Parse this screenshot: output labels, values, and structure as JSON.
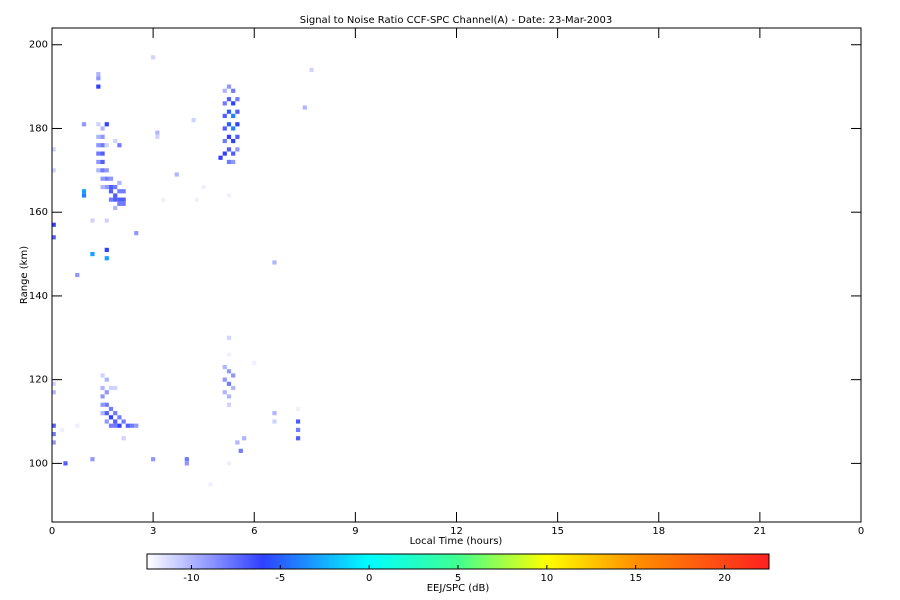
{
  "chart_data": {
    "type": "heatmap",
    "title": "Signal to Noise Ratio CCF-SPC Channel(A) - Date: 23-Mar-2003",
    "x_label": "Local Time (hours)",
    "y_label": "Range (km)",
    "colorbar_label": "EEJ/SPC (dB)",
    "xlim": [
      0,
      24
    ],
    "xticks": [
      0,
      3,
      6,
      9,
      12,
      15,
      18,
      21,
      {
        "value": 24,
        "label": "0"
      }
    ],
    "ylim": [
      86,
      204
    ],
    "yticks": [
      100,
      120,
      140,
      160,
      180,
      200
    ],
    "clim": [
      -12.5,
      22.5
    ],
    "cticks": [
      -10,
      -5,
      0,
      5,
      10,
      15,
      20
    ],
    "colorscale": [
      [
        -12.5,
        "#ffffff"
      ],
      [
        -6,
        "#3040ff"
      ],
      [
        0,
        "#00ffff"
      ],
      [
        5,
        "#40ff90"
      ],
      [
        10,
        "#ffff00"
      ],
      [
        15,
        "#ff9000"
      ],
      [
        22.5,
        "#ff2020"
      ]
    ],
    "x_step": 0.125,
    "y_step": 1,
    "cells": [
      [
        0.05,
        157,
        -6
      ],
      [
        0.05,
        154,
        -7
      ],
      [
        0.05,
        170,
        -11
      ],
      [
        0.05,
        175,
        -11
      ],
      [
        0.05,
        117,
        -10
      ],
      [
        0.05,
        119,
        -11
      ],
      [
        0.05,
        109,
        -7
      ],
      [
        0.05,
        107,
        -8
      ],
      [
        0.05,
        105,
        -9
      ],
      [
        0.4,
        100,
        -7
      ],
      [
        0.3,
        108,
        -12
      ],
      [
        0.75,
        145,
        -9
      ],
      [
        0.75,
        109,
        -12
      ],
      [
        0.95,
        181,
        -9
      ],
      [
        0.95,
        165,
        -3
      ],
      [
        0.95,
        164,
        -4
      ],
      [
        1.2,
        150,
        -3
      ],
      [
        1.2,
        158,
        -11
      ],
      [
        1.2,
        101,
        -9
      ],
      [
        1.375,
        193,
        -10
      ],
      [
        1.375,
        192,
        -9
      ],
      [
        1.375,
        190,
        -6
      ],
      [
        1.375,
        181,
        -11
      ],
      [
        1.375,
        178,
        -10
      ],
      [
        1.375,
        176,
        -9
      ],
      [
        1.375,
        174,
        -8
      ],
      [
        1.375,
        172,
        -9
      ],
      [
        1.375,
        170,
        -10
      ],
      [
        1.5,
        180,
        -10
      ],
      [
        1.5,
        178,
        -9
      ],
      [
        1.5,
        176,
        -8
      ],
      [
        1.5,
        174,
        -7
      ],
      [
        1.5,
        172,
        -7
      ],
      [
        1.5,
        170,
        -8
      ],
      [
        1.5,
        168,
        -9
      ],
      [
        1.5,
        166,
        -10
      ],
      [
        1.625,
        181,
        -6
      ],
      [
        1.625,
        176,
        -11
      ],
      [
        1.625,
        170,
        -9
      ],
      [
        1.625,
        168,
        -8
      ],
      [
        1.625,
        166,
        -9
      ],
      [
        1.625,
        158,
        -11
      ],
      [
        1.625,
        151,
        -6
      ],
      [
        1.625,
        149,
        -3
      ],
      [
        1.75,
        168,
        -9
      ],
      [
        1.75,
        166,
        -7
      ],
      [
        1.75,
        165,
        -7
      ],
      [
        1.75,
        163,
        -8
      ],
      [
        1.875,
        177,
        -11
      ],
      [
        1.875,
        166,
        -8
      ],
      [
        1.875,
        164,
        -7
      ],
      [
        1.875,
        163,
        -7
      ],
      [
        1.875,
        161,
        -10
      ],
      [
        2.0,
        176,
        -8
      ],
      [
        2.0,
        167,
        -10
      ],
      [
        2.0,
        165,
        -8
      ],
      [
        2.0,
        163,
        -7
      ],
      [
        2.0,
        162,
        -8
      ],
      [
        2.125,
        165,
        -8
      ],
      [
        2.125,
        163,
        -7
      ],
      [
        2.125,
        162,
        -8
      ],
      [
        2.5,
        155,
        -9
      ],
      [
        3.0,
        197,
        -11
      ],
      [
        3.125,
        179,
        -10
      ],
      [
        3.125,
        178,
        -11
      ],
      [
        3.3,
        163,
        -12
      ],
      [
        3.7,
        169,
        -10
      ],
      [
        4.2,
        182,
        -11
      ],
      [
        4.3,
        163,
        -12
      ],
      [
        4.5,
        166,
        -12
      ],
      [
        1.5,
        121,
        -11
      ],
      [
        1.5,
        118,
        -10
      ],
      [
        1.5,
        116,
        -9
      ],
      [
        1.5,
        114,
        -9
      ],
      [
        1.5,
        112,
        -10
      ],
      [
        1.625,
        120,
        -10
      ],
      [
        1.625,
        117,
        -9
      ],
      [
        1.625,
        114,
        -8
      ],
      [
        1.625,
        112,
        -7
      ],
      [
        1.625,
        110,
        -9
      ],
      [
        1.75,
        118,
        -11
      ],
      [
        1.75,
        113,
        -8
      ],
      [
        1.75,
        111,
        -6
      ],
      [
        1.75,
        109,
        -8
      ],
      [
        1.875,
        118,
        -11
      ],
      [
        1.875,
        112,
        -8
      ],
      [
        1.875,
        110,
        -7
      ],
      [
        1.875,
        109,
        -8
      ],
      [
        2.0,
        111,
        -8
      ],
      [
        2.0,
        109,
        -6
      ],
      [
        2.125,
        110,
        -8
      ],
      [
        2.125,
        106,
        -11
      ],
      [
        2.25,
        109,
        -7
      ],
      [
        2.375,
        109,
        -8
      ],
      [
        2.5,
        109,
        -9
      ],
      [
        3.0,
        101,
        -9
      ],
      [
        4.0,
        101,
        -8
      ],
      [
        4.0,
        100,
        -9
      ],
      [
        4.7,
        95,
        -12
      ],
      [
        5.125,
        189,
        -10
      ],
      [
        5.125,
        186,
        -8
      ],
      [
        5.125,
        183,
        -7
      ],
      [
        5.125,
        180,
        -7
      ],
      [
        5.125,
        177,
        -8
      ],
      [
        5.125,
        174,
        -6
      ],
      [
        5.0,
        173,
        -6
      ],
      [
        5.25,
        190,
        -9
      ],
      [
        5.25,
        187,
        -7
      ],
      [
        5.25,
        184,
        -5
      ],
      [
        5.25,
        181,
        -5
      ],
      [
        5.25,
        178,
        -6
      ],
      [
        5.25,
        175,
        -7
      ],
      [
        5.25,
        172,
        -8
      ],
      [
        5.375,
        189,
        -8
      ],
      [
        5.375,
        186,
        -6
      ],
      [
        5.375,
        183,
        -4
      ],
      [
        5.375,
        180,
        -4
      ],
      [
        5.375,
        177,
        -6
      ],
      [
        5.375,
        174,
        -7
      ],
      [
        5.375,
        172,
        -9
      ],
      [
        5.5,
        187,
        -8
      ],
      [
        5.5,
        184,
        -7
      ],
      [
        5.5,
        181,
        -6
      ],
      [
        5.5,
        178,
        -7
      ],
      [
        5.5,
        175,
        -9
      ],
      [
        5.25,
        164,
        -12
      ],
      [
        5.25,
        130,
        -11
      ],
      [
        5.25,
        126,
        -12
      ],
      [
        5.125,
        123,
        -10
      ],
      [
        5.125,
        120,
        -9
      ],
      [
        5.125,
        117,
        -10
      ],
      [
        5.25,
        122,
        -9
      ],
      [
        5.25,
        119,
        -8
      ],
      [
        5.25,
        116,
        -10
      ],
      [
        5.375,
        121,
        -9
      ],
      [
        5.375,
        118,
        -10
      ],
      [
        5.25,
        114,
        -11
      ],
      [
        5.5,
        105,
        -10
      ],
      [
        5.6,
        103,
        -8
      ],
      [
        5.7,
        106,
        -10
      ],
      [
        5.25,
        100,
        -12
      ],
      [
        6.0,
        124,
        -12
      ],
      [
        6.6,
        148,
        -10
      ],
      [
        6.6,
        112,
        -10
      ],
      [
        6.6,
        110,
        -11
      ],
      [
        7.3,
        110,
        -7
      ],
      [
        7.3,
        108,
        -8
      ],
      [
        7.3,
        106,
        -7
      ],
      [
        7.3,
        113,
        -12
      ],
      [
        7.5,
        185,
        -10
      ],
      [
        7.7,
        194,
        -11
      ]
    ]
  }
}
